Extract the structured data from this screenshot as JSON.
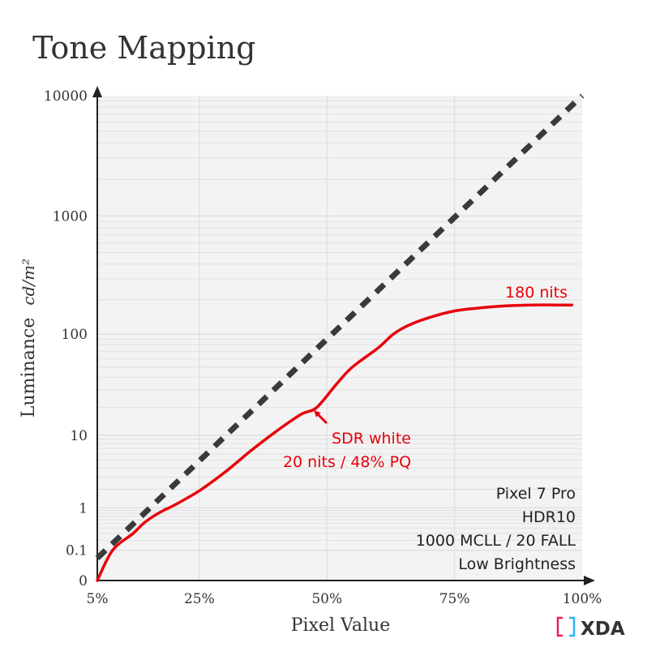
{
  "chart_data": {
    "type": "line",
    "title": "Tone Mapping",
    "xlabel": "Pixel Value",
    "ylabel": "Luminance",
    "ylabel_unit": "cd/m²",
    "x_ticks": [
      "5%",
      "25%",
      "50%",
      "75%",
      "100%"
    ],
    "y_ticks": [
      "0",
      "0.1",
      "1",
      "10",
      "100",
      "1000",
      "10000"
    ],
    "xlim": [
      5,
      100
    ],
    "ylim": [
      0,
      10000
    ],
    "yscale": "PQ (perceptual quantizer)",
    "grid": true,
    "series": [
      {
        "name": "",
        "style": "dashed",
        "color": "#3a3a3a",
        "x": [
          5,
          100
        ],
        "y": [
          0.05,
          10000
        ]
      },
      {
        "name": "",
        "style": "solid",
        "color": "#e8000b",
        "x": [
          5,
          8,
          12,
          14,
          16,
          18,
          20,
          25,
          30,
          35,
          40,
          45,
          48,
          52,
          55,
          60,
          63,
          66,
          70,
          75,
          80,
          85,
          90,
          95,
          98
        ],
        "y": [
          0,
          0.1,
          0.3,
          0.5,
          0.7,
          0.9,
          1.1,
          1.9,
          3.5,
          6.5,
          11,
          17,
          20,
          35,
          50,
          75,
          100,
          120,
          140,
          160,
          170,
          177,
          180,
          180,
          180
        ]
      }
    ],
    "annotations": {
      "peak_label": "180 nits",
      "sdr_white_line1": "SDR white",
      "sdr_white_line2": "20 nits / 48% PQ",
      "info_lines": [
        "Pixel 7 Pro",
        "HDR10",
        "1000 MCLL / 20 FALL",
        "Low Brightness"
      ]
    },
    "colors": {
      "curve": "#e8000b",
      "reference": "#3a3a3a",
      "plot_bg": "#f3f3f3",
      "grid": "#dcdcdc"
    }
  },
  "brand": {
    "logo_text": "XDA"
  }
}
